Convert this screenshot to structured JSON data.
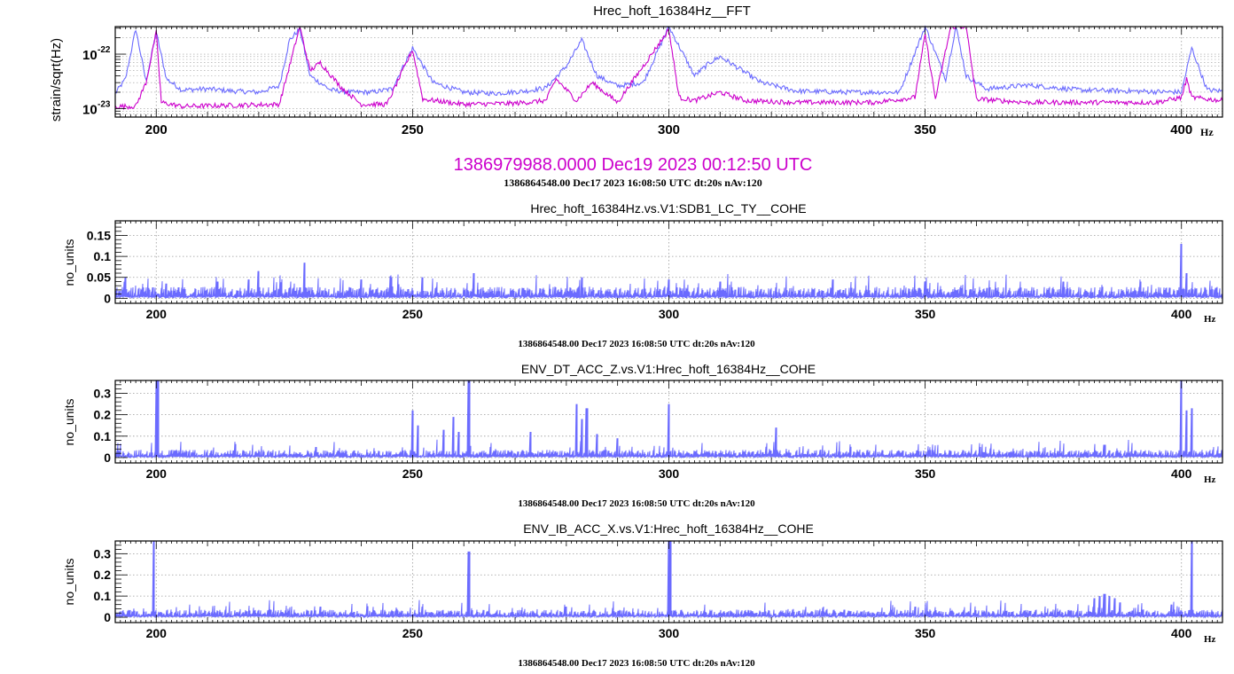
{
  "colors": {
    "blue": "#6b6bff",
    "magenta": "#cc00cc",
    "axis": "#000000",
    "grid": "#9a9a9a"
  },
  "chart_data": [
    {
      "type": "line",
      "title": "Hrec_hoft_16384Hz__FFT",
      "xlabel": "Hz",
      "ylabel": "strain/sqrt(Hz)",
      "xlim": [
        192,
        408
      ],
      "ylim": [
        7e-24,
        3.2e-22
      ],
      "yscale": "log",
      "grid": true,
      "x_ticks": [
        200,
        250,
        300,
        350,
        400
      ],
      "y_ticks": [
        {
          "value": 1e-23,
          "label": "10",
          "exp": "-23"
        },
        {
          "value": 1e-22,
          "label": "10",
          "exp": "-22"
        }
      ],
      "reference_label": "1386979988.0000 Dec19 2023 00:12:50 UTC",
      "footer": "1386864548.00 Dec17 2023 16:08:50 UTC dt:20s nAv:120",
      "series": [
        {
          "color": "blue",
          "x": [
            192,
            194,
            196,
            198,
            200,
            202,
            205,
            210,
            215,
            220,
            224,
            226,
            228,
            230,
            234,
            238,
            242,
            246,
            250,
            254,
            260,
            266,
            272,
            276,
            280,
            283,
            286,
            290,
            295,
            300,
            305,
            308,
            310,
            313,
            318,
            325,
            335,
            345,
            350,
            354,
            356,
            358,
            362,
            370,
            380,
            390,
            400,
            402,
            405,
            408
          ],
          "y": [
            1.9e-23,
            3.5e-23,
            2.9e-22,
            3.2e-23,
            2.5e-22,
            3.5e-23,
            2.2e-23,
            2.3e-23,
            2.1e-23,
            2e-23,
            2.6e-23,
            1.8e-22,
            2.9e-22,
            4e-23,
            2.2e-23,
            2e-23,
            2e-23,
            2.3e-23,
            1.3e-22,
            3e-23,
            2e-23,
            1.9e-23,
            2.1e-23,
            2.4e-23,
            6e-23,
            1.8e-22,
            4e-23,
            2.6e-23,
            3e-23,
            3.2e-22,
            4e-23,
            7e-23,
            9e-23,
            6e-23,
            3e-23,
            2.1e-23,
            2e-23,
            2e-23,
            3.2e-22,
            3.5e-23,
            3.2e-22,
            4e-23,
            2.3e-23,
            2.7e-23,
            2.2e-23,
            2.1e-23,
            2e-23,
            1.3e-22,
            2.2e-23,
            2.1e-23
          ]
        },
        {
          "color": "magenta",
          "x": [
            192,
            196,
            198,
            200,
            201,
            205,
            215,
            224,
            226,
            228,
            230,
            232,
            236,
            240,
            245,
            250,
            252,
            260,
            270,
            276,
            278,
            282,
            285,
            290,
            300,
            302,
            305,
            310,
            315,
            325,
            340,
            348,
            350,
            352,
            355,
            356,
            357,
            358,
            360,
            370,
            380,
            395,
            400,
            401,
            402,
            408
          ],
          "y": [
            1.1e-23,
            1.1e-23,
            3e-23,
            2.5e-22,
            1.3e-23,
            1.1e-23,
            1.15e-23,
            1.2e-23,
            6e-23,
            3.2e-22,
            5e-23,
            7e-23,
            2.5e-23,
            1.2e-23,
            1.2e-23,
            1.2e-22,
            1.5e-23,
            1.2e-23,
            1.25e-23,
            1.4e-23,
            3.5e-23,
            1.4e-23,
            3e-23,
            1.3e-23,
            2.8e-22,
            1.6e-23,
            1.4e-23,
            2e-23,
            1.4e-23,
            1.3e-23,
            1.3e-23,
            1.6e-23,
            2.3e-22,
            1.5e-23,
            3.2e-22,
            3.2e-22,
            3.2e-22,
            3.2e-22,
            1.5e-23,
            1.3e-23,
            1.3e-23,
            1.3e-23,
            1.6e-23,
            3.5e-23,
            1.6e-23,
            1.4e-23
          ]
        }
      ]
    },
    {
      "type": "line",
      "title": "Hrec_hoft_16384Hz.vs.V1:SDB1_LC_TY__COHE",
      "xlabel": "Hz",
      "ylabel": "no_units",
      "xlim": [
        192,
        408
      ],
      "ylim": [
        -0.012,
        0.185
      ],
      "grid": true,
      "x_ticks": [
        200,
        250,
        300,
        350,
        400
      ],
      "y_ticks": [
        {
          "value": 0,
          "label": "0"
        },
        {
          "value": 0.05,
          "label": "0.05"
        },
        {
          "value": 0.1,
          "label": "0.1"
        },
        {
          "value": 0.15,
          "label": "0.15"
        }
      ],
      "footer": "1386864548.00 Dec17 2023 16:08:50 UTC dt:20s nAv:120",
      "baseline": 0.015,
      "spikes": [
        [
          194,
          0.05
        ],
        [
          202,
          0.035
        ],
        [
          212,
          0.04
        ],
        [
          218,
          0.045
        ],
        [
          220,
          0.065
        ],
        [
          229,
          0.085
        ],
        [
          240,
          0.045
        ],
        [
          252,
          0.05
        ],
        [
          262,
          0.06
        ],
        [
          283,
          0.05
        ],
        [
          300,
          0.045
        ],
        [
          310,
          0.04
        ],
        [
          332,
          0.045
        ],
        [
          350,
          0.04
        ],
        [
          377,
          0.04
        ],
        [
          392,
          0.04
        ],
        [
          400,
          0.13
        ],
        [
          401,
          0.06
        ]
      ],
      "series": [
        {
          "color": "blue"
        }
      ]
    },
    {
      "type": "line",
      "title": "ENV_DT_ACC_Z.vs.V1:Hrec_hoft_16384Hz__COHE",
      "xlabel": "Hz",
      "ylabel": "no_units",
      "xlim": [
        192,
        408
      ],
      "ylim": [
        -0.025,
        0.36
      ],
      "grid": true,
      "x_ticks": [
        200,
        250,
        300,
        350,
        400
      ],
      "y_ticks": [
        {
          "value": 0,
          "label": "0"
        },
        {
          "value": 0.1,
          "label": "0.1"
        },
        {
          "value": 0.2,
          "label": "0.2"
        },
        {
          "value": 0.3,
          "label": "0.3"
        }
      ],
      "footer": "1386864548.00 Dec17 2023 16:08:50 UTC dt:20s nAv:120",
      "baseline": 0.02,
      "spikes": [
        [
          200,
          0.36
        ],
        [
          200.4,
          0.36
        ],
        [
          250,
          0.22
        ],
        [
          251,
          0.15
        ],
        [
          256,
          0.13
        ],
        [
          258,
          0.19
        ],
        [
          259,
          0.12
        ],
        [
          261,
          0.36
        ],
        [
          273,
          0.12
        ],
        [
          282,
          0.25
        ],
        [
          283,
          0.18
        ],
        [
          284,
          0.23
        ],
        [
          286,
          0.11
        ],
        [
          290,
          0.09
        ],
        [
          300,
          0.25
        ],
        [
          321,
          0.14
        ],
        [
          385,
          0.06
        ],
        [
          400,
          0.36
        ],
        [
          401,
          0.22
        ],
        [
          402,
          0.23
        ]
      ],
      "series": [
        {
          "color": "blue"
        }
      ]
    },
    {
      "type": "line",
      "title": "ENV_IB_ACC_X.vs.V1:Hrec_hoft_16384Hz__COHE",
      "xlabel": "Hz",
      "ylabel": "no_units",
      "xlim": [
        192,
        408
      ],
      "ylim": [
        -0.025,
        0.36
      ],
      "grid": true,
      "x_ticks": [
        200,
        250,
        300,
        350,
        400
      ],
      "y_ticks": [
        {
          "value": 0,
          "label": "0"
        },
        {
          "value": 0.1,
          "label": "0.1"
        },
        {
          "value": 0.2,
          "label": "0.2"
        },
        {
          "value": 0.3,
          "label": "0.3"
        }
      ],
      "footer": "1386864548.00 Dec17 2023 16:08:50 UTC dt:20s nAv:120",
      "baseline": 0.02,
      "spikes": [
        [
          199.5,
          0.36
        ],
        [
          261,
          0.31
        ],
        [
          300,
          0.36
        ],
        [
          300.3,
          0.36
        ],
        [
          232,
          0.05
        ],
        [
          252,
          0.05
        ],
        [
          280,
          0.05
        ],
        [
          348,
          0.05
        ],
        [
          383,
          0.09
        ],
        [
          384,
          0.1
        ],
        [
          385,
          0.11
        ],
        [
          386,
          0.1
        ],
        [
          387,
          0.09
        ],
        [
          388,
          0.07
        ],
        [
          398,
          0.06
        ],
        [
          402,
          0.36
        ]
      ],
      "series": [
        {
          "color": "blue"
        }
      ]
    }
  ]
}
